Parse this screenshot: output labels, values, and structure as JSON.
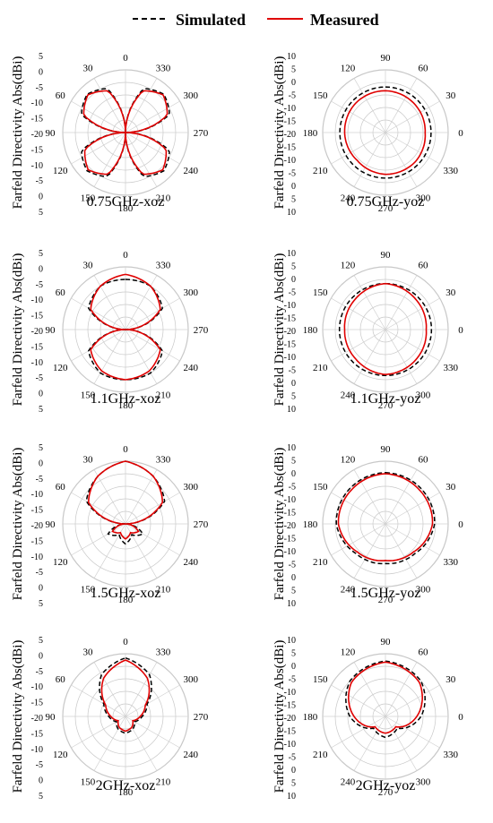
{
  "legend": {
    "simulated_label": "Simulated",
    "measured_label": "Measured",
    "simulated_color": "#000000",
    "measured_color": "#e00000"
  },
  "axis_title": "Farfeld Directivity Abs(dBi)",
  "radial_ticks": [
    "5",
    "0",
    "-5",
    "-10",
    "-15",
    "-20",
    "-15",
    "-10",
    "-5",
    "0",
    "5"
  ],
  "radial_ticks_right": [
    "10",
    "5",
    "0",
    "-5",
    "-10",
    "-15",
    "-20",
    "-15",
    "-10",
    "-5",
    "0",
    "5",
    "10"
  ],
  "chart_data": [
    {
      "type": "polar",
      "plane": "xoz",
      "title": "0.75GHz-xoz",
      "angle_labels": [
        "0",
        "330",
        "300",
        "270",
        "240",
        "210",
        "180",
        "150",
        "120",
        "90",
        "60",
        "30"
      ],
      "rlim": [
        -20,
        5
      ],
      "series": [
        {
          "name": "Simulated",
          "r_dbi": [
            -20,
            -1,
            1.6,
            -1,
            -20,
            -1,
            1.6,
            -1,
            -20
          ]
        },
        {
          "name": "Measured",
          "r_dbi": [
            -20,
            -2,
            1.2,
            -2,
            -20,
            -2.5,
            1,
            -2,
            -20
          ]
        }
      ],
      "theta_deg": [
        0,
        22.5,
        45,
        67.5,
        90,
        112.5,
        135,
        157.5,
        180
      ]
    },
    {
      "type": "polar",
      "plane": "yoz",
      "title": "0.75GHz-yoz",
      "angle_labels": [
        "90",
        "60",
        "30",
        "0",
        "330",
        "300",
        "270",
        "240",
        "210",
        "180",
        "150",
        "120"
      ],
      "rlim": [
        -20,
        10
      ],
      "series": [
        {
          "name": "Simulated",
          "r_dbi": [
            1.8,
            1.8,
            1.8,
            1.8,
            1.8,
            1.8,
            1.8,
            1.8
          ]
        },
        {
          "name": "Measured",
          "r_dbi": [
            0,
            -0.5,
            -1,
            0,
            0,
            -1,
            -0.5,
            0
          ]
        }
      ],
      "theta_deg": [
        0,
        45,
        90,
        135,
        180,
        225,
        270,
        315
      ]
    },
    {
      "type": "polar",
      "plane": "xoz",
      "title": "1.1GHz-xoz",
      "angle_labels": [
        "0",
        "330",
        "300",
        "270",
        "240",
        "210",
        "180",
        "150",
        "120",
        "90",
        "60",
        "30"
      ],
      "rlim": [
        -20,
        5
      ],
      "series": [
        {
          "name": "Simulated",
          "r_dbi": [
            0,
            0,
            -3,
            -20,
            -3,
            0,
            0
          ]
        },
        {
          "name": "Measured",
          "r_dbi": [
            2,
            0,
            -4,
            -20,
            -4,
            -1,
            0
          ]
        }
      ],
      "theta_deg": [
        0,
        30,
        60,
        90,
        120,
        150,
        180
      ]
    },
    {
      "type": "polar",
      "plane": "yoz",
      "title": "1.1GHz-yoz",
      "angle_labels": [
        "90",
        "60",
        "30",
        "0",
        "330",
        "300",
        "270",
        "240",
        "210",
        "180",
        "150",
        "120"
      ],
      "rlim": [
        -20,
        10
      ],
      "series": [
        {
          "name": "Simulated",
          "r_dbi": [
            2,
            2,
            2,
            2,
            2,
            2,
            2,
            2
          ]
        },
        {
          "name": "Measured",
          "r_dbi": [
            2,
            0.5,
            -0.5,
            0.5,
            1.5,
            0,
            -0.5,
            0.5
          ]
        }
      ],
      "theta_deg": [
        0,
        45,
        90,
        135,
        180,
        225,
        270,
        315
      ]
    },
    {
      "type": "polar",
      "plane": "xoz",
      "title": "1.5GHz-xoz",
      "angle_labels": [
        "0",
        "330",
        "300",
        "270",
        "240",
        "210",
        "180",
        "150",
        "120",
        "90",
        "60",
        "30"
      ],
      "rlim": [
        -20,
        5
      ],
      "series": [
        {
          "name": "Simulated",
          "r_dbi": [
            5,
            2,
            -2,
            -20,
            -12,
            -15,
            -12
          ]
        },
        {
          "name": "Measured",
          "r_dbi": [
            5,
            2,
            -3,
            -20,
            -14,
            -16,
            -14
          ]
        }
      ],
      "theta_deg": [
        0,
        30,
        60,
        90,
        120,
        150,
        180
      ]
    },
    {
      "type": "polar",
      "plane": "yoz",
      "title": "1.5GHz-yoz",
      "angle_labels": [
        "90",
        "60",
        "30",
        "0",
        "330",
        "300",
        "270",
        "240",
        "210",
        "180",
        "150",
        "120"
      ],
      "rlim": [
        -20,
        10
      ],
      "series": [
        {
          "name": "Simulated",
          "r_dbi": [
            4.5,
            4,
            3.5,
            0,
            -1,
            0,
            3.5,
            4
          ]
        },
        {
          "name": "Measured",
          "r_dbi": [
            4,
            3,
            2.5,
            -1,
            -2.5,
            -1,
            2.5,
            3
          ]
        }
      ],
      "theta_deg": [
        0,
        45,
        90,
        135,
        180,
        225,
        270,
        315
      ]
    },
    {
      "type": "polar",
      "plane": "xoz",
      "title": "2GHz-xoz",
      "angle_labels": [
        "0",
        "330",
        "300",
        "270",
        "240",
        "210",
        "180",
        "150",
        "120",
        "90",
        "60",
        "30"
      ],
      "rlim": [
        -20,
        10
      ],
      "series": [
        {
          "name": "Simulated",
          "r_dbi": [
            8,
            3,
            -8,
            -12,
            -15,
            -13,
            -12
          ]
        },
        {
          "name": "Measured",
          "r_dbi": [
            7,
            1,
            -9,
            -13,
            -16,
            -14,
            -13
          ]
        }
      ],
      "theta_deg": [
        0,
        30,
        60,
        90,
        120,
        150,
        180
      ]
    },
    {
      "type": "polar",
      "plane": "yoz",
      "title": "2GHz-yoz",
      "angle_labels": [
        "90",
        "60",
        "30",
        "0",
        "330",
        "300",
        "270",
        "240",
        "210",
        "180",
        "150",
        "120"
      ],
      "rlim": [
        -20,
        10
      ],
      "series": [
        {
          "name": "Simulated",
          "r_dbi": [
            6.5,
            4,
            -3,
            -12,
            -10,
            -12,
            -3,
            4
          ]
        },
        {
          "name": "Measured",
          "r_dbi": [
            6,
            3,
            -5,
            -13,
            -12,
            -13,
            -5,
            3
          ]
        }
      ],
      "theta_deg": [
        0,
        45,
        90,
        135,
        180,
        225,
        270,
        315
      ]
    }
  ]
}
